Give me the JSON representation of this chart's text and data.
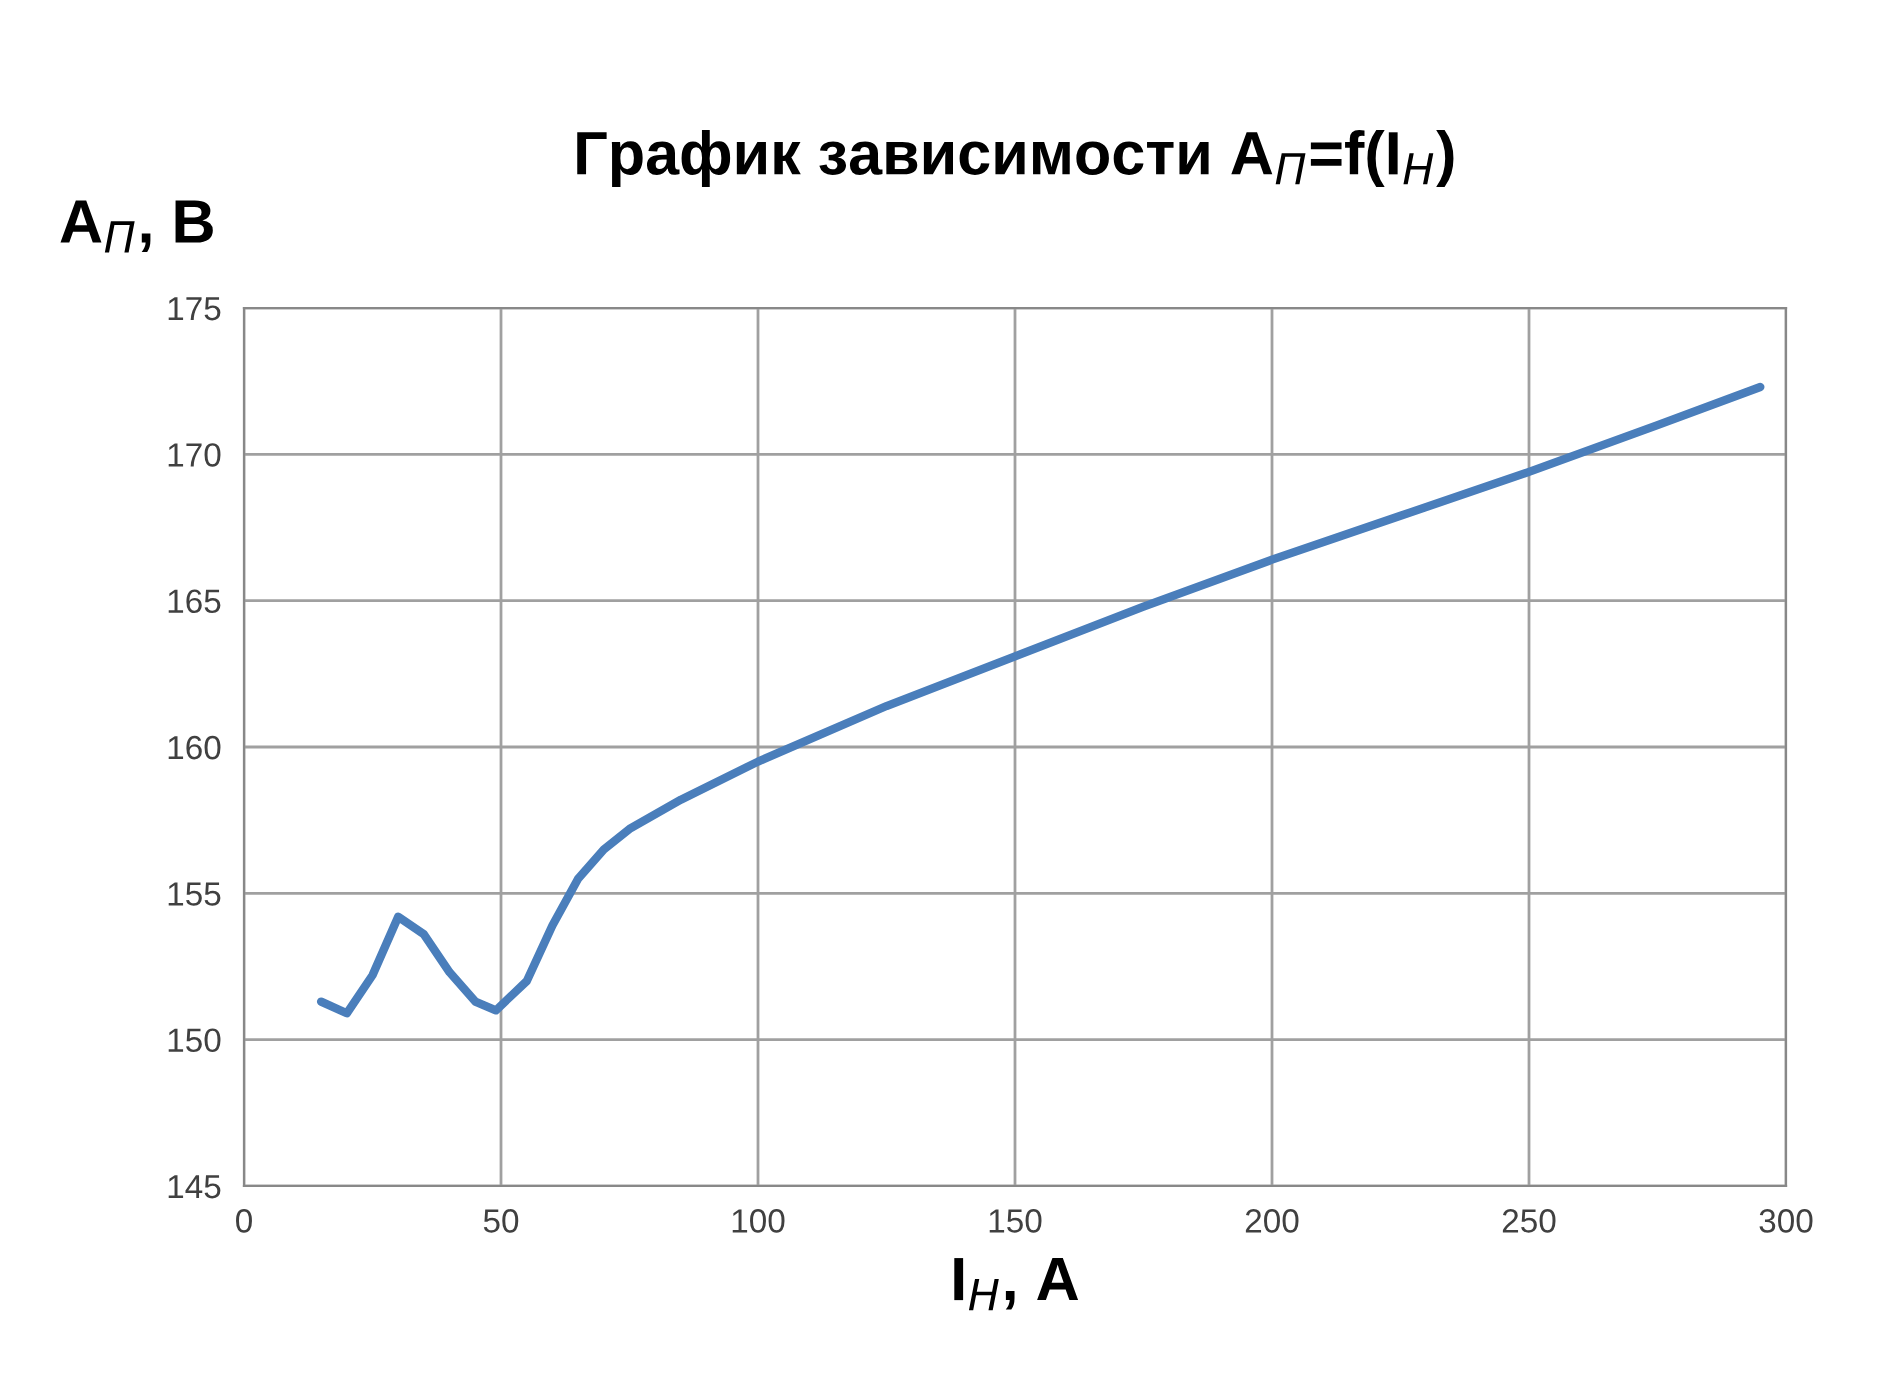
{
  "chart_data": {
    "type": "line",
    "title": "График зависимости A$_{П}$=f(I$_{Н}$)",
    "xlabel": "I$_{Н}$, А",
    "ylabel": "A$_{П}$, В",
    "series": [
      {
        "color": "#4a7ebb",
        "x": [
          15,
          20,
          25,
          30,
          35,
          40,
          45,
          49,
          55,
          60,
          65,
          70,
          75,
          85,
          100,
          125,
          150,
          175,
          200,
          225,
          250,
          275,
          295
        ],
        "values": [
          151.3,
          150.9,
          152.2,
          154.2,
          153.6,
          152.3,
          151.3,
          151.0,
          152.0,
          153.9,
          155.5,
          156.5,
          157.2,
          158.2,
          159.5,
          161.4,
          163.1,
          164.8,
          166.4,
          167.9,
          169.4,
          171.0,
          172.3
        ]
      }
    ],
    "xlim": [
      0,
      300
    ],
    "xticks": [
      0,
      50,
      100,
      150,
      200,
      250,
      300
    ],
    "ylim": [
      145,
      175
    ],
    "yticks": [
      145,
      150,
      155,
      160,
      165,
      170,
      175
    ],
    "grid": true,
    "line_style": "solid",
    "marker": "none"
  }
}
